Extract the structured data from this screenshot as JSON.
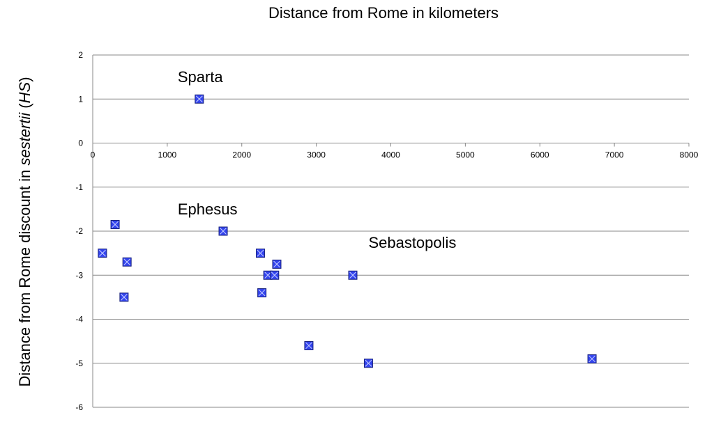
{
  "chart_data": {
    "type": "scatter",
    "title": "Distance from Rome in kilometers",
    "ylabel_parts": [
      "Distance from Rome discount in ",
      "sestertii",
      " (",
      "HS",
      ")"
    ],
    "xlim": [
      0,
      8000
    ],
    "ylim": [
      -6,
      2
    ],
    "x_ticks": [
      0,
      1000,
      2000,
      3000,
      4000,
      5000,
      6000,
      7000,
      8000
    ],
    "y_ticks": [
      2,
      1,
      0,
      -1,
      -2,
      -3,
      -4,
      -5,
      -6
    ],
    "grid": "horizontal",
    "marker_color": "#3344ee",
    "points": [
      {
        "x": 1430,
        "y": 1.0
      },
      {
        "x": 300,
        "y": -1.85
      },
      {
        "x": 1750,
        "y": -2.0
      },
      {
        "x": 130,
        "y": -2.5
      },
      {
        "x": 460,
        "y": -2.7
      },
      {
        "x": 420,
        "y": -3.5
      },
      {
        "x": 2250,
        "y": -2.5
      },
      {
        "x": 2470,
        "y": -2.75
      },
      {
        "x": 2350,
        "y": -3.0
      },
      {
        "x": 2440,
        "y": -3.0
      },
      {
        "x": 2270,
        "y": -3.4
      },
      {
        "x": 3490,
        "y": -3.0
      },
      {
        "x": 2900,
        "y": -4.6
      },
      {
        "x": 3700,
        "y": -5.0
      },
      {
        "x": 6700,
        "y": -4.9
      }
    ],
    "annotations": [
      {
        "text": "Sparta",
        "x": 1140,
        "y": 1.38
      },
      {
        "text": "Ephesus",
        "x": 1140,
        "y": -1.62
      },
      {
        "text": "Sebastopolis",
        "x": 3700,
        "y": -2.38
      }
    ]
  }
}
